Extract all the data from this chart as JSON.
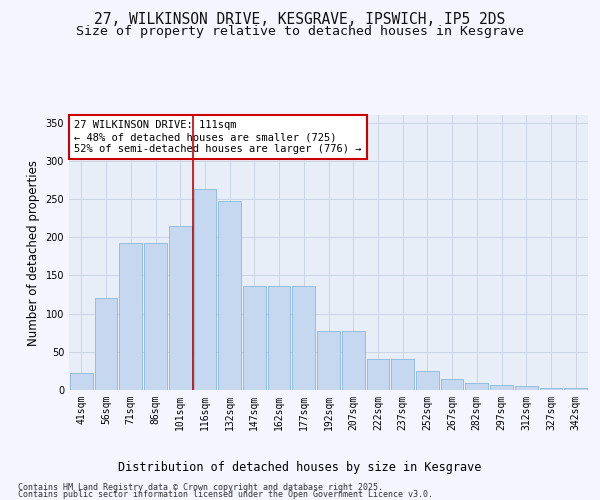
{
  "title_line1": "27, WILKINSON DRIVE, KESGRAVE, IPSWICH, IP5 2DS",
  "title_line2": "Size of property relative to detached houses in Kesgrave",
  "xlabel": "Distribution of detached houses by size in Kesgrave",
  "ylabel": "Number of detached properties",
  "categories": [
    "41sqm",
    "56sqm",
    "71sqm",
    "86sqm",
    "101sqm",
    "116sqm",
    "132sqm",
    "147sqm",
    "162sqm",
    "177sqm",
    "192sqm",
    "207sqm",
    "222sqm",
    "237sqm",
    "252sqm",
    "267sqm",
    "282sqm",
    "297sqm",
    "312sqm",
    "327sqm",
    "342sqm"
  ],
  "values": [
    22,
    120,
    193,
    193,
    215,
    263,
    248,
    136,
    136,
    136,
    77,
    77,
    40,
    40,
    25,
    15,
    9,
    6,
    5,
    3,
    2
  ],
  "bar_color": "#c5d8f0",
  "bar_edge_color": "#7bafd4",
  "vline_color": "#cc0000",
  "vline_pos": 4.5,
  "annotation_line1": "27 WILKINSON DRIVE: 111sqm",
  "annotation_line2": "← 48% of detached houses are smaller (725)",
  "annotation_line3": "52% of semi-detached houses are larger (776) →",
  "annotation_box_color": "#ffffff",
  "annotation_box_edge_color": "#cc0000",
  "ylim": [
    0,
    360
  ],
  "yticks": [
    0,
    50,
    100,
    150,
    200,
    250,
    300,
    350
  ],
  "grid_color": "#ccd5e5",
  "background_color": "#e8eef8",
  "fig_bg_color": "#f5f5ff",
  "footer_line1": "Contains HM Land Registry data © Crown copyright and database right 2025.",
  "footer_line2": "Contains public sector information licensed under the Open Government Licence v3.0.",
  "title_fontsize": 10.5,
  "subtitle_fontsize": 9.5,
  "axis_label_fontsize": 8.5,
  "tick_fontsize": 7,
  "annotation_fontsize": 7.5,
  "footer_fontsize": 6
}
